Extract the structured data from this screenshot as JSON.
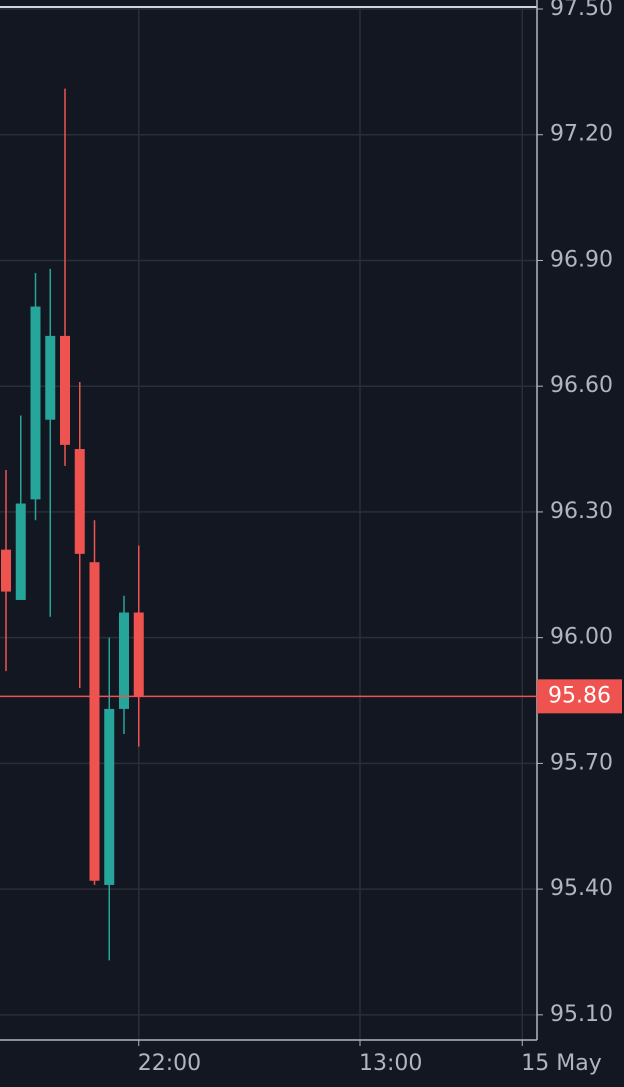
{
  "chart_data": {
    "type": "candlestick",
    "categories": [
      null,
      null,
      null,
      null,
      null,
      null,
      null,
      null,
      null,
      "22:00",
      null,
      null,
      null,
      null,
      null,
      null,
      null,
      null,
      null,
      null,
      null,
      null,
      null,
      null,
      "13:00",
      null,
      null,
      null,
      null,
      null,
      null,
      null,
      null,
      null,
      null,
      "15 May",
      null
    ],
    "open": [
      96.21,
      96.09,
      96.33,
      96.52,
      96.72,
      96.45,
      96.18,
      95.41,
      95.83,
      96.06,
      null,
      null,
      null,
      null,
      null,
      null,
      null,
      null,
      null,
      null,
      null,
      null,
      null,
      null,
      null,
      null,
      null,
      null,
      null,
      null,
      null,
      null,
      null,
      null,
      null,
      null,
      null
    ],
    "high": [
      96.4,
      96.53,
      96.87,
      96.88,
      97.31,
      96.61,
      96.28,
      96.0,
      96.1,
      96.22,
      null,
      null,
      null,
      null,
      null,
      null,
      null,
      null,
      null,
      null,
      null,
      null,
      null,
      null,
      null,
      null,
      null,
      null,
      null,
      null,
      null,
      null,
      null,
      null,
      null,
      null,
      null
    ],
    "low": [
      95.92,
      96.09,
      96.28,
      96.05,
      96.41,
      95.88,
      95.41,
      95.23,
      95.77,
      95.74,
      null,
      null,
      null,
      null,
      null,
      null,
      null,
      null,
      null,
      null,
      null,
      null,
      null,
      null,
      null,
      null,
      null,
      null,
      null,
      null,
      null,
      null,
      null,
      null,
      null,
      null,
      null
    ],
    "close": [
      96.11,
      96.32,
      96.79,
      96.72,
      96.46,
      96.2,
      95.42,
      95.83,
      96.06,
      95.86,
      null,
      null,
      null,
      null,
      null,
      null,
      null,
      null,
      null,
      null,
      null,
      null,
      null,
      null,
      null,
      null,
      null,
      null,
      null,
      null,
      null,
      null,
      null,
      null,
      null,
      null,
      null
    ],
    "up_color": "#26a69a",
    "down_color": "#ef5350",
    "last_price": 95.86,
    "ylim": [
      95.04,
      97.5
    ],
    "yticks": [
      {
        "value": 95.1,
        "label": "95.10"
      },
      {
        "value": 95.4,
        "label": "95.40"
      },
      {
        "value": 95.7,
        "label": "95.70"
      },
      {
        "value": 96.0,
        "label": "96.00"
      },
      {
        "value": 96.3,
        "label": "96.30"
      },
      {
        "value": 96.6,
        "label": "96.60"
      },
      {
        "value": 96.9,
        "label": "96.90"
      },
      {
        "value": 97.2,
        "label": "97.20"
      },
      {
        "value": 97.5,
        "label": "97.50"
      }
    ],
    "grid": true
  }
}
